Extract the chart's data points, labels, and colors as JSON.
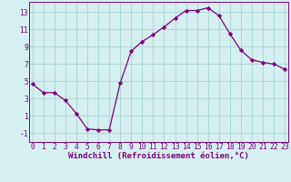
{
  "x": [
    0,
    1,
    2,
    3,
    4,
    5,
    6,
    7,
    8,
    9,
    10,
    11,
    12,
    13,
    14,
    15,
    16,
    17,
    18,
    19,
    20,
    21,
    22,
    23
  ],
  "y": [
    4.7,
    3.7,
    3.7,
    2.8,
    1.3,
    -0.5,
    -0.6,
    -0.6,
    4.8,
    8.5,
    9.6,
    10.4,
    11.3,
    12.3,
    13.2,
    13.2,
    13.5,
    12.6,
    10.5,
    8.6,
    7.5,
    7.2,
    7.0,
    6.4
  ],
  "line_color": "#800080",
  "marker": "D",
  "marker_size": 2.2,
  "bg_color": "#d4f0f0",
  "grid_color": "#aad4d4",
  "xlabel": "Windchill (Refroidissement éolien,°C)",
  "yticks": [
    -1,
    1,
    3,
    5,
    7,
    9,
    11,
    13
  ],
  "xticks": [
    0,
    1,
    2,
    3,
    4,
    5,
    6,
    7,
    8,
    9,
    10,
    11,
    12,
    13,
    14,
    15,
    16,
    17,
    18,
    19,
    20,
    21,
    22,
    23
  ],
  "ylim": [
    -2.0,
    14.2
  ],
  "xlim": [
    -0.3,
    23.3
  ],
  "label_fontsize": 6.5,
  "tick_fontsize": 5.8
}
